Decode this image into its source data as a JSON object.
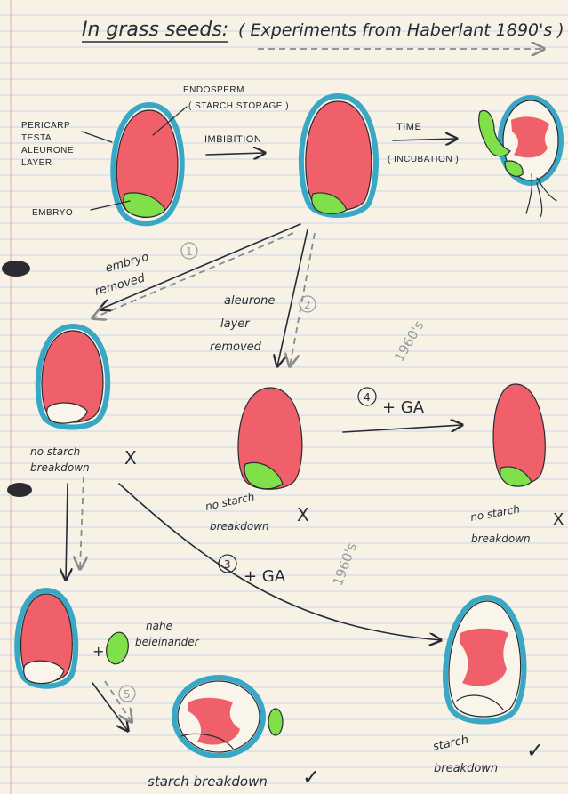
{
  "title": "In grass seeds:",
  "subtitle": "( Experiments from Haberlant 1890's )",
  "labels": {
    "endosperm": "ENDOSPERM",
    "endosperm_note": "( STARCH STORAGE )",
    "pericarp": "PERICARP",
    "testa": "TESTA",
    "aleurone": "ALEURONE",
    "aleurone_layer": "LAYER",
    "embryo": "EMBRYO",
    "imbibition": "IMBIBITION",
    "time": "TIME",
    "incubation": "( INCUBATION )"
  },
  "steps": {
    "step1_num": "1",
    "step1_line1": "embryo",
    "step1_line2": "removed",
    "step2_num": "2",
    "step2_line1": "aleurone",
    "step2_line2": "layer",
    "step2_line3": "removed",
    "step3_num": "3",
    "step3_label": "+ GA",
    "step4_num": "4",
    "step4_label": "+ GA",
    "step5_num": "5",
    "nahe_line1": "nahe",
    "nahe_line2": "beieinander",
    "plus": "+"
  },
  "results": {
    "no_starch_line1": "no starch",
    "no_starch_line2": "breakdown",
    "starch_line1": "starch",
    "starch_line2": "breakdown",
    "starch_breakdown": "starch breakdown",
    "cross": "X",
    "check": "✓"
  },
  "pencil_notes": {
    "note_1960_a": "1960's",
    "note_1960_b": "1960's"
  },
  "colors": {
    "paper": "#f8f2e6",
    "ruling": "#c9d6e6",
    "seed_coat": "#38a8c4",
    "endosperm": "#f0606a",
    "embryo": "#7fe04a",
    "ink": "#2a2a33"
  }
}
